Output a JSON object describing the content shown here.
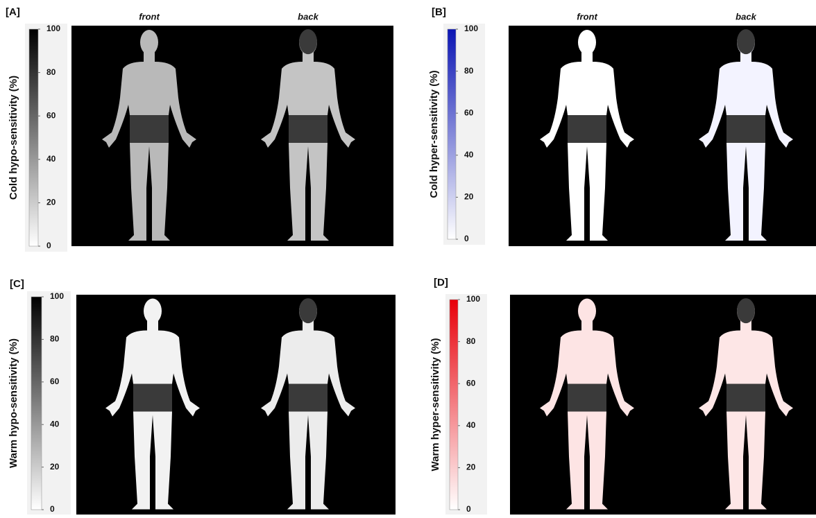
{
  "panels": [
    {
      "label": "[A]",
      "axis_label": "Cold hypo-sensitivity (%)",
      "views": [
        "front",
        "back"
      ],
      "colorbar": {
        "lim": [
          0,
          100
        ],
        "ticks": [
          0,
          20,
          40,
          60,
          80,
          100
        ],
        "color": "#000000"
      }
    },
    {
      "label": "[B]",
      "axis_label": "Cold hyper-sensitivity (%)",
      "views": [
        "front",
        "back"
      ],
      "colorbar": {
        "lim": [
          0,
          100
        ],
        "ticks": [
          0,
          20,
          40,
          60,
          80,
          100
        ],
        "color": "#0a14b4"
      }
    },
    {
      "label": "[C]",
      "axis_label": "Warm hypo-sensitivity (%)",
      "colorbar": {
        "lim": [
          0,
          100
        ],
        "ticks": [
          0,
          20,
          40,
          60,
          80,
          100
        ],
        "color": "#000000"
      }
    },
    {
      "label": "[D]",
      "axis_label": "Warm hyper-sensitivity (%)",
      "colorbar": {
        "lim": [
          0,
          100
        ],
        "ticks": [
          0,
          20,
          40,
          60,
          80,
          100
        ],
        "color": "#e8000a"
      }
    }
  ]
}
